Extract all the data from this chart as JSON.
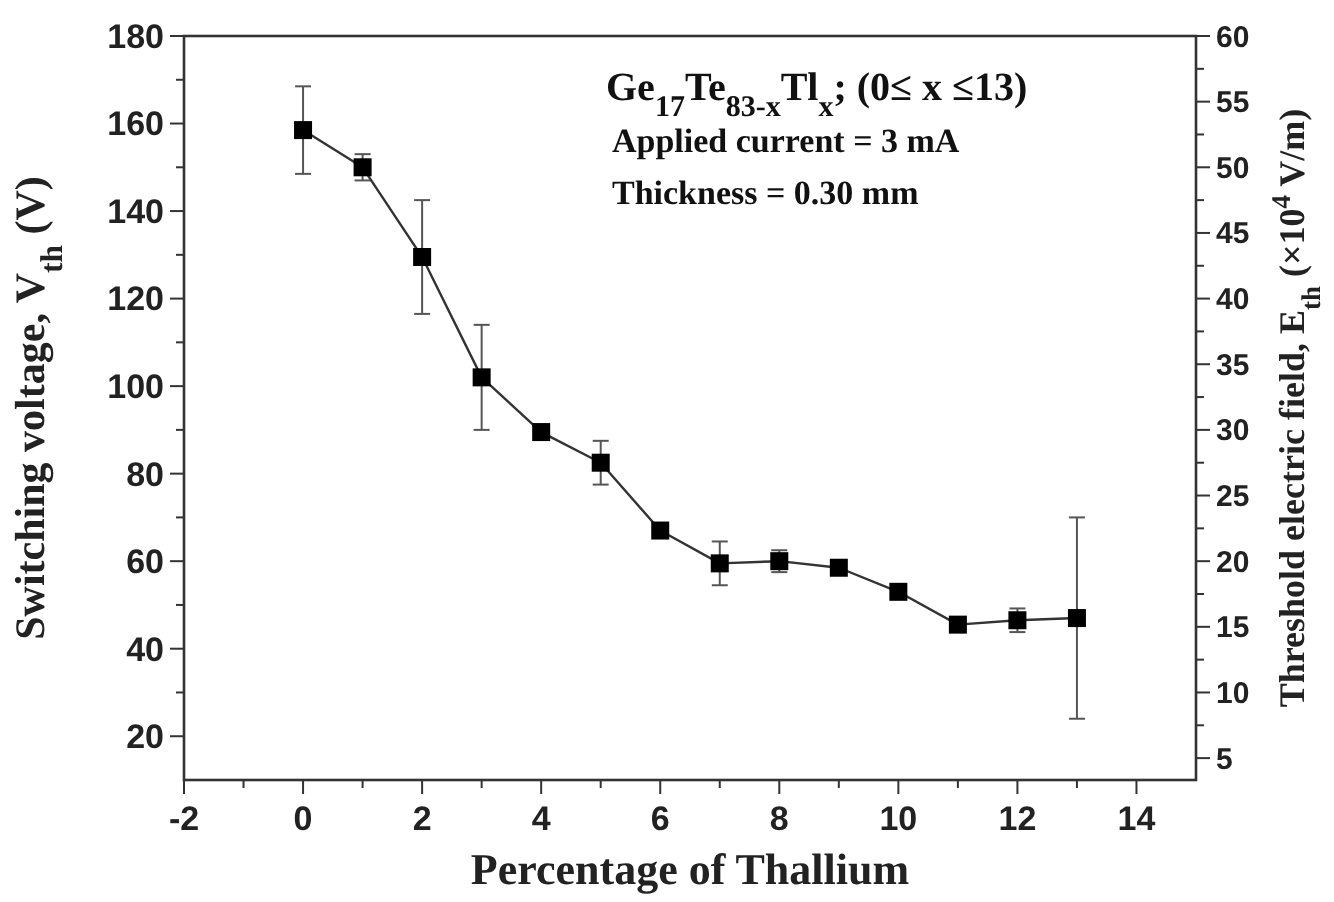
{
  "chart_data": {
    "type": "line",
    "xlabel": "Percentage of Thallium",
    "ylabel": "Switching voltage, V$_{th}$ (V)",
    "y2label": "Threshold electric field, E$_{th}$ (×10$^{4}$ V/m)",
    "x": [
      0,
      1,
      2,
      3,
      4,
      5,
      6,
      7,
      8,
      9,
      10,
      11,
      12,
      13
    ],
    "series": [
      {
        "color": "#000000",
        "values": [
          158.5,
          150,
          129.5,
          102,
          89.5,
          82.5,
          67,
          59.5,
          60,
          58.5,
          53,
          45.5,
          46.5,
          47
        ],
        "errors": [
          10,
          3,
          13,
          12,
          1.5,
          5,
          null,
          5,
          2.5,
          null,
          1.5,
          null,
          2.7,
          23
        ]
      }
    ],
    "marker": "square",
    "line_style": "solid",
    "grid": false,
    "xlim": [
      -2,
      15
    ],
    "xticks": [
      -2,
      {
        "value": -1,
        "label": null
      },
      0,
      {
        "value": 1,
        "label": null
      },
      2,
      {
        "value": 3,
        "label": null
      },
      4,
      {
        "value": 5,
        "label": null
      },
      6,
      {
        "value": 7,
        "label": null
      },
      8,
      {
        "value": 9,
        "label": null
      },
      10,
      {
        "value": 11,
        "label": null
      },
      12,
      {
        "value": 13,
        "label": null
      },
      14
    ],
    "ylim": [
      10,
      180
    ],
    "yticks": [
      20,
      {
        "value": 30,
        "label": null
      },
      40,
      {
        "value": 50,
        "label": null
      },
      60,
      {
        "value": 70,
        "label": null
      },
      80,
      {
        "value": 90,
        "label": null
      },
      100,
      {
        "value": 110,
        "label": null
      },
      120,
      {
        "value": 130,
        "label": null
      },
      140,
      {
        "value": 150,
        "label": null
      },
      160,
      {
        "value": 170,
        "label": null
      },
      180
    ],
    "y2lim": [
      3.333,
      60
    ],
    "y2ticks": [
      5,
      {
        "value": 7.5,
        "label": null
      },
      10,
      {
        "value": 12.5,
        "label": null
      },
      15,
      {
        "value": 17.5,
        "label": null
      },
      20,
      {
        "value": 22.5,
        "label": null
      },
      25,
      {
        "value": 27.5,
        "label": null
      },
      30,
      {
        "value": 32.5,
        "label": null
      },
      35,
      {
        "value": 37.5,
        "label": null
      },
      40,
      {
        "value": 42.5,
        "label": null
      },
      45,
      {
        "value": 47.5,
        "label": null
      },
      50,
      {
        "value": 52.5,
        "label": null
      },
      55,
      {
        "value": 57.5,
        "label": null
      },
      60
    ],
    "annotations": [
      "Ge$_{17}$Te$_{83-x}$Tl$_{x}$; (0≤ x ≤13)",
      "Applied current = 3 mA",
      "Thickness = 0.30 mm"
    ]
  }
}
